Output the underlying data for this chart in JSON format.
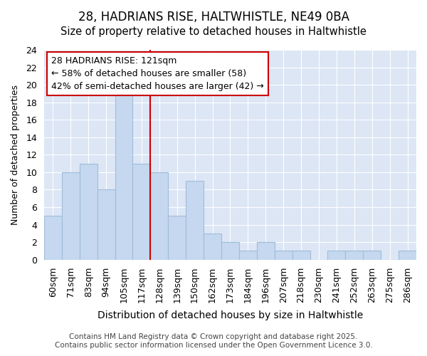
{
  "title1": "28, HADRIANS RISE, HALTWHISTLE, NE49 0BA",
  "title2": "Size of property relative to detached houses in Haltwhistle",
  "xlabel": "Distribution of detached houses by size in Haltwhistle",
  "ylabel": "Number of detached properties",
  "categories": [
    "60sqm",
    "71sqm",
    "83sqm",
    "94sqm",
    "105sqm",
    "117sqm",
    "128sqm",
    "139sqm",
    "150sqm",
    "162sqm",
    "173sqm",
    "184sqm",
    "196sqm",
    "207sqm",
    "218sqm",
    "230sqm",
    "241sqm",
    "252sqm",
    "263sqm",
    "275sqm",
    "286sqm"
  ],
  "values": [
    5,
    10,
    11,
    8,
    19,
    11,
    10,
    5,
    9,
    3,
    2,
    1,
    2,
    1,
    1,
    0,
    1,
    1,
    1,
    0,
    1
  ],
  "bar_color": "#c5d8f0",
  "bar_edge_color": "#a0bcd8",
  "bg_color": "#dce6f5",
  "grid_color": "#ffffff",
  "fig_bg_color": "#ffffff",
  "vline_color": "#cc0000",
  "vline_x_index": 6,
  "annotation_text": "28 HADRIANS RISE: 121sqm\n← 58% of detached houses are smaller (58)\n42% of semi-detached houses are larger (42) →",
  "annotation_box_color": "white",
  "annotation_box_edge": "#cc0000",
  "ylim": [
    0,
    24
  ],
  "yticks": [
    0,
    2,
    4,
    6,
    8,
    10,
    12,
    14,
    16,
    18,
    20,
    22,
    24
  ],
  "footer": "Contains HM Land Registry data © Crown copyright and database right 2025.\nContains public sector information licensed under the Open Government Licence 3.0.",
  "title1_fontsize": 12,
  "title2_fontsize": 10.5,
  "xlabel_fontsize": 10,
  "ylabel_fontsize": 9,
  "tick_fontsize": 9,
  "annotation_fontsize": 9,
  "footer_fontsize": 7.5
}
